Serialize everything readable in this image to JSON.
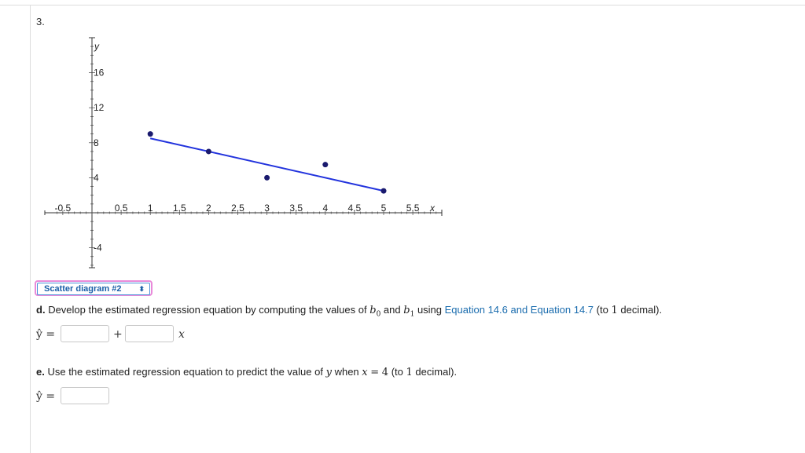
{
  "question_number": "3.",
  "chart_data": {
    "type": "scatter",
    "xlabel": "x",
    "ylabel": "y",
    "xlim": [
      -0.5,
      5.5
    ],
    "ylim": [
      -4,
      16
    ],
    "x_ticks": [
      "-0.5",
      "0.5",
      "1",
      "1.5",
      "2",
      "2.5",
      "3",
      "3.5",
      "4",
      "4.5",
      "5",
      "5.5"
    ],
    "x_tick_values": [
      -0.5,
      0.5,
      1,
      1.5,
      2,
      2.5,
      3,
      3.5,
      4,
      4.5,
      5,
      5.5
    ],
    "y_ticks": [
      "16",
      "12",
      "8",
      "4",
      "-4"
    ],
    "y_tick_values": [
      16,
      12,
      8,
      4,
      -4
    ],
    "points": [
      {
        "x": 1,
        "y": 9
      },
      {
        "x": 2,
        "y": 7
      },
      {
        "x": 3,
        "y": 4
      },
      {
        "x": 4,
        "y": 5.5
      },
      {
        "x": 5,
        "y": 2.5
      }
    ],
    "line": {
      "x1": 1,
      "y1": 8.5,
      "x2": 5,
      "y2": 2.5
    },
    "point_color": "#1a1a6e",
    "line_color": "#2233dd"
  },
  "dropdown": {
    "selected": "Scatter diagram #2"
  },
  "part_d": {
    "label": "d.",
    "text_before": "Develop the estimated regression equation by computing the values of",
    "b0": "b",
    "b0_sub": "0",
    "and": "and",
    "b1": "b",
    "b1_sub": "1",
    "using": "using",
    "link_text": "Equation 14.6 and Equation 14.7",
    "paren_open": "(to",
    "decimals": "1",
    "paren_close": "decimal).",
    "yhat": "ŷ =",
    "plus": "+",
    "x_var": "x",
    "input1": "",
    "input2": ""
  },
  "part_e": {
    "label": "e.",
    "text_before": "Use the estimated regression equation to predict the value of",
    "y_var": "y",
    "when": "when",
    "x_eq": "x",
    "eq": "=",
    "x_value": "4",
    "paren_open": "(to",
    "decimals": "1",
    "paren_close": "decimal).",
    "yhat": "ŷ =",
    "input": ""
  }
}
